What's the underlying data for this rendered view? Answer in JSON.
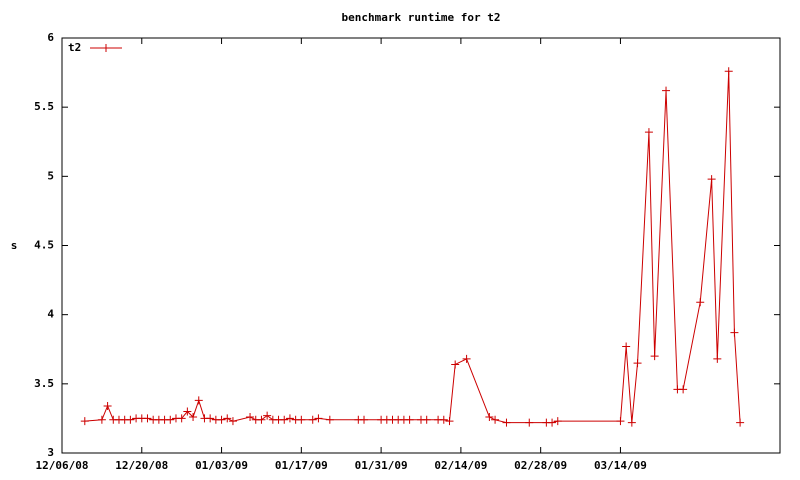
{
  "chart_data": {
    "type": "line",
    "title": "benchmark runtime for t2",
    "y_label": "s",
    "x": [
      "12/10/08",
      "12/13/08",
      "12/14/08",
      "12/15/08",
      "12/16/08",
      "12/17/08",
      "12/18/08",
      "12/19/08",
      "12/20/08",
      "12/21/08",
      "12/22/08",
      "12/23/08",
      "12/24/08",
      "12/25/08",
      "12/26/08",
      "12/27/08",
      "12/28/08",
      "12/29/08",
      "12/30/08",
      "12/31/08",
      "01/01/09",
      "01/02/09",
      "01/03/09",
      "01/04/09",
      "01/05/09",
      "01/08/09",
      "01/09/09",
      "01/10/09",
      "01/11/09",
      "01/12/09",
      "01/13/09",
      "01/14/09",
      "01/15/09",
      "01/16/09",
      "01/17/09",
      "01/19/09",
      "01/20/09",
      "01/22/09",
      "01/27/09",
      "01/28/09",
      "01/31/09",
      "02/01/09",
      "02/02/09",
      "02/03/09",
      "02/04/09",
      "02/05/09",
      "02/07/09",
      "02/08/09",
      "02/10/09",
      "02/11/09",
      "02/12/09",
      "02/13/09",
      "02/15/09",
      "02/19/09",
      "02/20/09",
      "02/22/09",
      "02/26/09",
      "03/01/09",
      "03/02/09",
      "03/03/09",
      "03/14/09",
      "03/15/09",
      "03/16/09",
      "03/17/09",
      "03/19/09",
      "03/20/09",
      "03/22/09",
      "03/24/09",
      "03/25/09",
      "03/28/09",
      "03/30/09",
      "03/31/09",
      "04/02/09",
      "04/03/09",
      "04/04/09"
    ],
    "series": [
      {
        "name": "t2",
        "color": "#cc0000",
        "values": [
          3.23,
          3.24,
          3.34,
          3.24,
          3.24,
          3.24,
          3.24,
          3.25,
          3.25,
          3.25,
          3.24,
          3.24,
          3.24,
          3.24,
          3.25,
          3.25,
          3.3,
          3.26,
          3.38,
          3.25,
          3.25,
          3.24,
          3.24,
          3.25,
          3.23,
          3.26,
          3.24,
          3.24,
          3.27,
          3.24,
          3.24,
          3.24,
          3.25,
          3.24,
          3.24,
          3.24,
          3.25,
          3.24,
          3.24,
          3.24,
          3.24,
          3.24,
          3.24,
          3.24,
          3.24,
          3.24,
          3.24,
          3.24,
          3.24,
          3.24,
          3.23,
          3.64,
          3.68,
          3.26,
          3.24,
          3.22,
          3.22,
          3.22,
          3.22,
          3.23,
          3.23,
          3.77,
          3.22,
          3.65,
          5.32,
          3.7,
          5.62,
          3.46,
          3.46,
          4.09,
          4.98,
          3.68,
          5.76,
          3.87,
          3.22
        ]
      }
    ],
    "xlim": [
      "12/06/08",
      "04/11/09"
    ],
    "xticks": [
      "12/06/08",
      "12/20/08",
      "01/03/09",
      "01/17/09",
      "01/31/09",
      "02/14/09",
      "02/28/09",
      "03/14/09"
    ],
    "ylim": [
      3,
      6
    ],
    "yticks": [
      3,
      3.5,
      4,
      4.5,
      5,
      5.5,
      6
    ],
    "grid": false,
    "legend": "top-left"
  }
}
